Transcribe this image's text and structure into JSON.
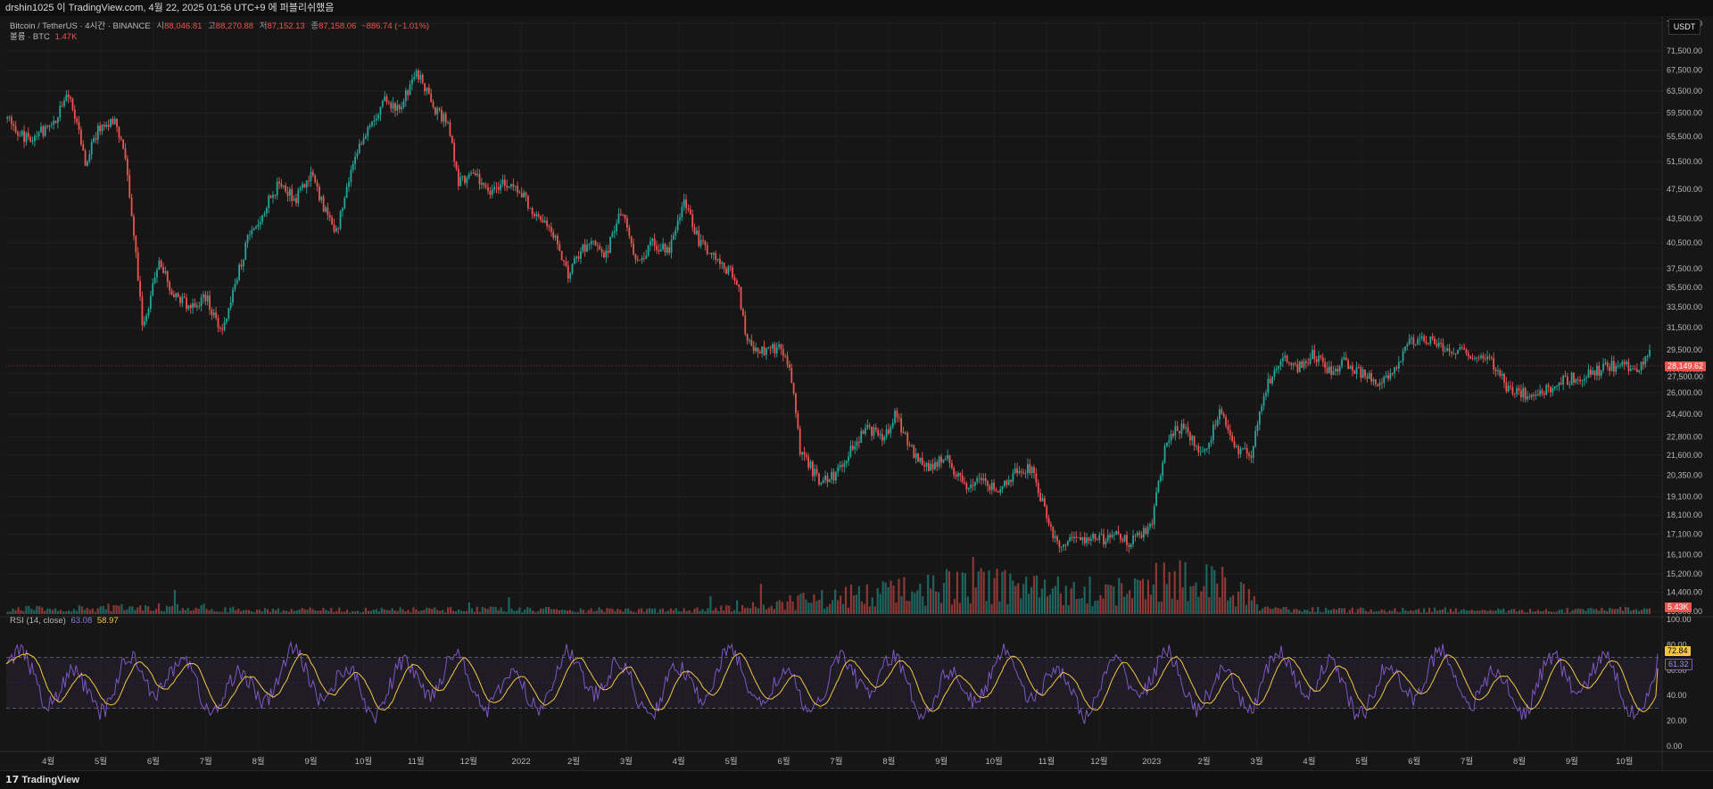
{
  "header": {
    "text": "drshin1025 이 TradingView.com, 4월 22, 2025 01:56 UTC+9 에 퍼블리쉬했음"
  },
  "legend": {
    "symbol": "Bitcoin / TetherUS · 4시간 · BINANCE",
    "open_label": "시",
    "open": "88,046.81",
    "high_label": "고",
    "high": "88,270.88",
    "low_label": "저",
    "low": "87,152.13",
    "close_label": "종",
    "close": "87,158.06",
    "change": "−886.74 (−1.01%)",
    "volume_label": "볼륨 · BTC",
    "volume": "1.47K",
    "rsi_label": "RSI (14, close)",
    "rsi_value": "63.08",
    "rsi_ma": "58.97"
  },
  "currency_button": "USDT",
  "price_tags": {
    "last": "28,149.62",
    "second": "27,500.00",
    "volume": "5.43K",
    "rsi": "72.84",
    "rsi_ma": "61.32"
  },
  "footer": {
    "brand": "TradingView",
    "logo_glyph": "17"
  },
  "colors": {
    "up": "#26a69a",
    "down": "#ef5350",
    "rsi": "#7e57c2",
    "rsi_ma": "#f5c542",
    "background": "#161616"
  },
  "chart_data": [
    {
      "type": "candlestick",
      "title": "Bitcoin / TetherUS · 4시간 · BINANCE",
      "scale": "log",
      "ylim": [
        13500,
        78000
      ],
      "y_ticks": [
        77500,
        71500,
        67500,
        63500,
        59500,
        55500,
        51500,
        47500,
        43500,
        40500,
        37500,
        35500,
        33500,
        31500,
        29500,
        27500,
        26000,
        24400,
        22800,
        21600,
        20350,
        19100,
        18100,
        17100,
        16100,
        15200,
        14400,
        13600
      ],
      "y_tick_labels": [
        "77,500.00",
        "71,500.00",
        "67,500.00",
        "63,500.00",
        "59,500.00",
        "55,500.00",
        "51,500.00",
        "47,500.00",
        "43,500.00",
        "40,500.00",
        "37,500.00",
        "35,500.00",
        "33,500.00",
        "31,500.00",
        "29,500.00",
        "27,500.00",
        "26,000.00",
        "24,400.00",
        "22,800.00",
        "21,600.00",
        "20,350.00",
        "19,100.00",
        "18,100.00",
        "17,100.00",
        "16,100.00",
        "15,200.00",
        "14,400.00",
        "13,600.00"
      ],
      "x_tick_labels": [
        "4월",
        "5월",
        "6월",
        "7월",
        "8월",
        "9월",
        "10월",
        "11월",
        "12월",
        "2022",
        "2월",
        "3월",
        "4월",
        "5월",
        "6월",
        "7월",
        "8월",
        "9월",
        "10월",
        "11월",
        "12월",
        "2023",
        "2월",
        "3월",
        "4월",
        "5월",
        "6월",
        "7월",
        "8월",
        "9월",
        "10월"
      ],
      "x_months": [
        0.8,
        1.8,
        2.8,
        3.8,
        4.8,
        5.8,
        6.8,
        7.8,
        8.8,
        9.8,
        10.8,
        11.8,
        12.8,
        13.8,
        14.8,
        15.8,
        16.8,
        17.8,
        18.8,
        19.8,
        20.8,
        21.8,
        22.8,
        23.8,
        24.8,
        25.8,
        26.8,
        27.8,
        28.8,
        29.8,
        30.8
      ],
      "xlim": [
        0,
        31.5
      ],
      "price_path": {
        "t": [
          0.0,
          0.4,
          0.9,
          1.2,
          1.5,
          1.8,
          2.1,
          2.3,
          2.6,
          2.9,
          3.2,
          3.5,
          3.8,
          4.1,
          4.3,
          4.6,
          4.9,
          5.2,
          5.5,
          5.8,
          6.1,
          6.3,
          6.6,
          6.9,
          7.2,
          7.5,
          7.8,
          8.1,
          8.4,
          8.6,
          8.9,
          9.2,
          9.5,
          9.8,
          10.1,
          10.4,
          10.7,
          10.8,
          11.1,
          11.4,
          11.7,
          12.0,
          12.3,
          12.6,
          12.9,
          13.2,
          13.5,
          13.7,
          13.9,
          14.1,
          14.4,
          14.7,
          14.9,
          15.1,
          15.5,
          15.8,
          16.1,
          16.4,
          16.7,
          16.9,
          17.3,
          17.6,
          17.9,
          18.2,
          18.6,
          18.9,
          19.2,
          19.5,
          19.8,
          20.0,
          20.4,
          20.8,
          21.1,
          21.4,
          21.8,
          22.1,
          22.4,
          22.8,
          23.1,
          23.4,
          23.7,
          24.0,
          24.3,
          24.6,
          24.9,
          25.2,
          25.5,
          25.8,
          26.1,
          26.4,
          26.7,
          27.1,
          27.4,
          27.7,
          28.0,
          28.3,
          28.6,
          28.9,
          29.0,
          29.3,
          29.6,
          29.9,
          30.2,
          30.5,
          30.8,
          31.1,
          31.3
        ],
        "p": [
          58500,
          55000,
          57500,
          63500,
          51500,
          57500,
          58000,
          50000,
          31000,
          38500,
          34500,
          33500,
          34500,
          31000,
          34500,
          41000,
          44500,
          48500,
          46000,
          49500,
          44000,
          42000,
          51500,
          57000,
          61500,
          60500,
          67500,
          61000,
          57500,
          48500,
          50000,
          47000,
          48500,
          47000,
          43500,
          42000,
          36500,
          38500,
          40500,
          39000,
          44500,
          38000,
          40500,
          39500,
          45500,
          40500,
          39000,
          37500,
          36500,
          30000,
          29500,
          29700,
          28500,
          22000,
          19800,
          20500,
          22000,
          23500,
          22500,
          24400,
          21500,
          20800,
          21500,
          19800,
          20000,
          19500,
          20500,
          20800,
          18000,
          16500,
          17000,
          16800,
          17100,
          16700,
          17500,
          22800,
          23500,
          21700,
          24500,
          22000,
          21600,
          26700,
          28600,
          28000,
          29200,
          27500,
          28500,
          27500,
          27000,
          27500,
          30400,
          30200,
          29800,
          29400,
          29100,
          28400,
          26200,
          25900,
          26100,
          26200,
          26900,
          27200,
          27600,
          28100,
          28200,
          28100,
          29300
        ]
      },
      "last_price": 28149.62
    },
    {
      "type": "bar",
      "title": "볼륨 · BTC",
      "series": [
        {
          "name": "볼륨",
          "values_note_free": true
        }
      ],
      "volume_profile": {
        "t": [
          0,
          3,
          4,
          6,
          8,
          9,
          12,
          13,
          14,
          15,
          16,
          17,
          18,
          19,
          20,
          21,
          22,
          23,
          24,
          25,
          26,
          27,
          28,
          29,
          30,
          31.3
        ],
        "v": [
          0.12,
          0.18,
          0.12,
          0.1,
          0.1,
          0.12,
          0.1,
          0.1,
          0.15,
          0.3,
          0.45,
          0.55,
          0.7,
          0.75,
          0.6,
          0.55,
          0.8,
          0.9,
          0.12,
          0.1,
          0.1,
          0.1,
          0.1,
          0.1,
          0.1,
          0.15
        ]
      },
      "last_value_label": "5.43K"
    },
    {
      "type": "line",
      "title": "RSI (14, close)",
      "ylim": [
        0,
        100
      ],
      "y_ticks": [
        100,
        80,
        60,
        40,
        20,
        0
      ],
      "y_tick_labels": [
        "100.00",
        "80.00",
        "60.00",
        "40.00",
        "20.00",
        "0.00"
      ],
      "bands": [
        30,
        70
      ],
      "series": [
        {
          "name": "RSI",
          "last": 72.84
        },
        {
          "name": "MA",
          "last": 61.32
        }
      ]
    }
  ]
}
